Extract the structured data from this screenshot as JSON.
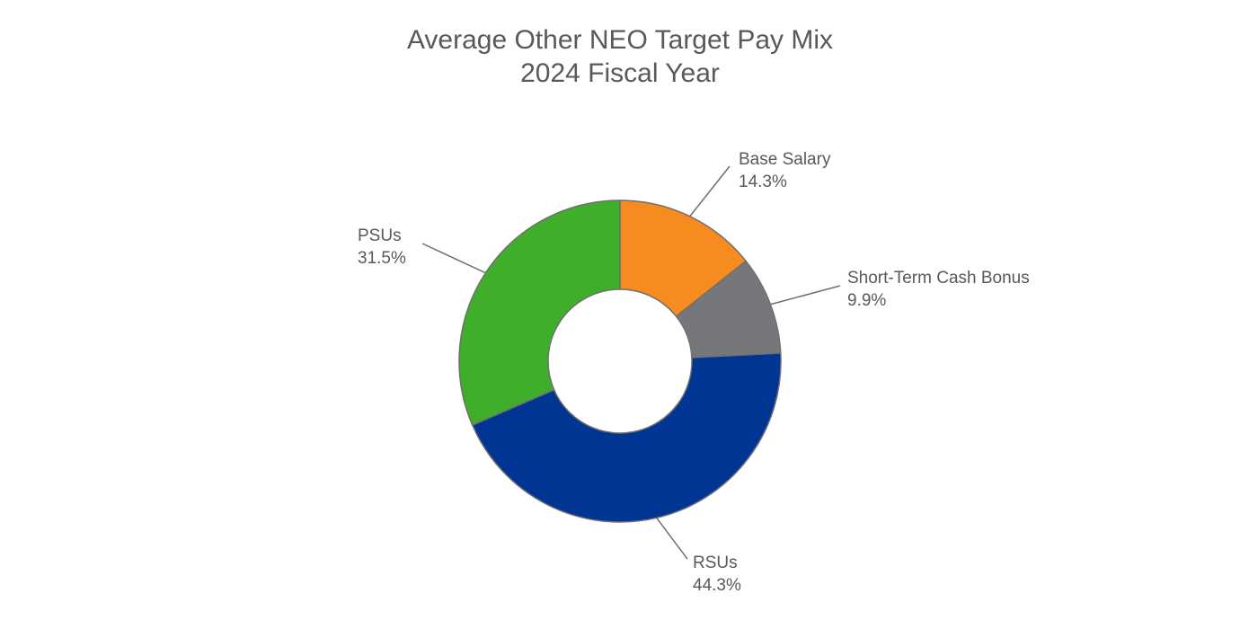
{
  "chart_data": {
    "type": "pie",
    "variant": "donut",
    "title": "Average Other NEO Target Pay Mix",
    "subtitle": "2024 Fiscal Year",
    "unit": "%",
    "slices": [
      {
        "name": "Base Salary",
        "value": 14.3,
        "value_label": "14.3%",
        "color": "#f68b1f"
      },
      {
        "name": "Short-Term Cash Bonus",
        "value": 9.9,
        "value_label": "9.9%",
        "color": "#76777a"
      },
      {
        "name": "RSUs",
        "value": 44.3,
        "value_label": "44.3%",
        "color": "#003594"
      },
      {
        "name": "PSUs",
        "value": 31.5,
        "value_label": "31.5%",
        "color": "#3fae2a"
      }
    ],
    "legend": "none",
    "labels": "outside with leader lines"
  }
}
